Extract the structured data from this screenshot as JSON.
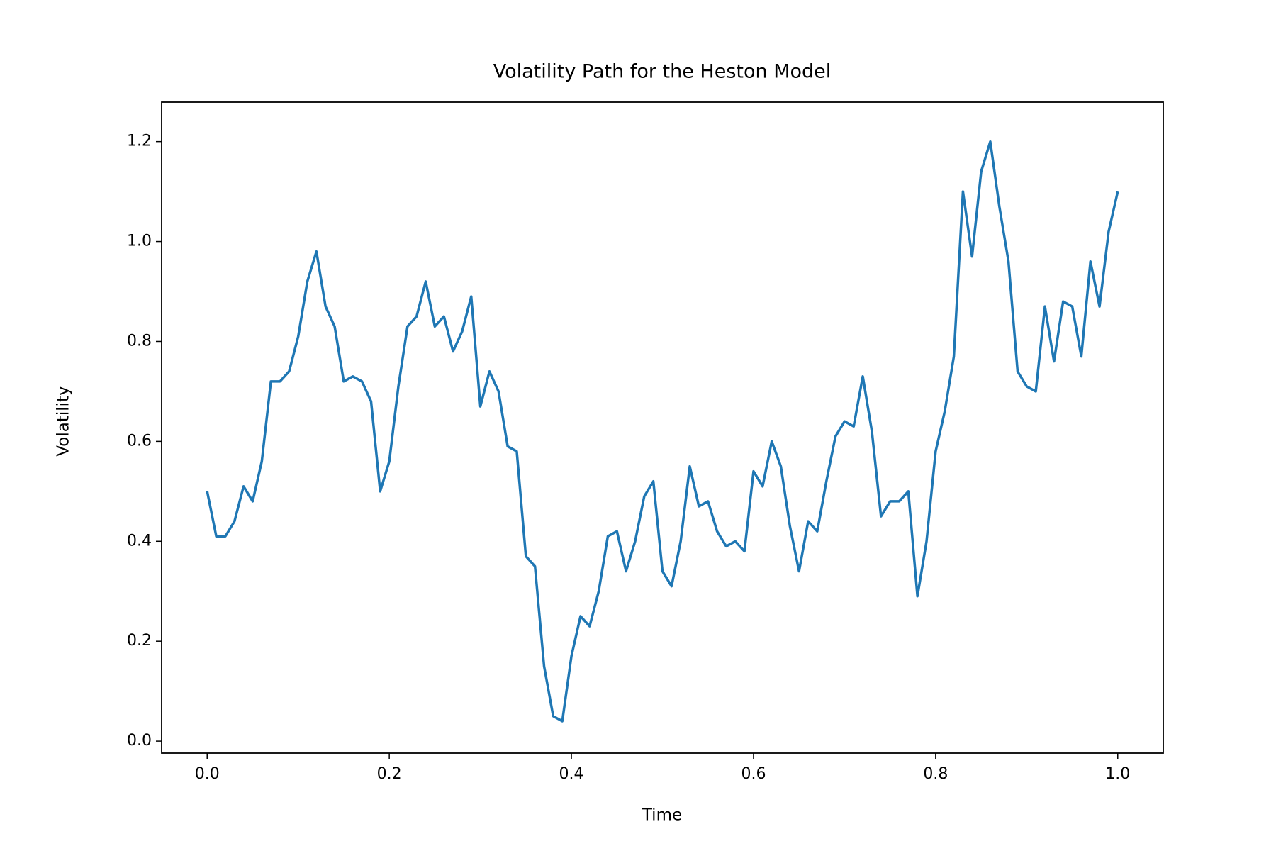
{
  "chart_data": {
    "type": "line",
    "title": "Volatility Path for the Heston Model",
    "x_label": "Time",
    "y_label": "Volatility",
    "x": [
      0,
      0.01,
      0.02,
      0.03,
      0.04,
      0.05,
      0.06,
      0.07,
      0.08,
      0.09,
      0.1,
      0.11,
      0.12,
      0.13,
      0.14,
      0.15,
      0.16,
      0.17,
      0.18,
      0.19,
      0.2,
      0.21,
      0.22,
      0.23,
      0.24,
      0.25,
      0.26,
      0.27,
      0.28,
      0.29,
      0.3,
      0.31,
      0.32,
      0.33,
      0.34,
      0.35,
      0.36,
      0.37,
      0.38,
      0.39,
      0.4,
      0.41,
      0.42,
      0.43,
      0.44,
      0.45,
      0.46,
      0.47,
      0.48,
      0.49,
      0.5,
      0.51,
      0.52,
      0.53,
      0.54,
      0.55,
      0.56,
      0.57,
      0.58,
      0.59,
      0.6,
      0.61,
      0.62,
      0.63,
      0.64,
      0.65,
      0.66,
      0.67,
      0.68,
      0.69,
      0.7,
      0.71,
      0.72,
      0.73,
      0.74,
      0.75,
      0.76,
      0.77,
      0.78,
      0.79,
      0.8,
      0.81,
      0.82,
      0.83,
      0.84,
      0.85,
      0.86,
      0.87,
      0.88,
      0.89,
      0.9,
      0.91,
      0.92,
      0.93,
      0.94,
      0.95,
      0.96,
      0.97,
      0.98,
      0.99,
      1
    ],
    "series": [
      {
        "name": "Volatility",
        "color": "#1f77b4",
        "values": [
          0.5,
          0.41,
          0.41,
          0.44,
          0.51,
          0.48,
          0.56,
          0.72,
          0.72,
          0.74,
          0.81,
          0.92,
          0.98,
          0.87,
          0.83,
          0.72,
          0.73,
          0.72,
          0.68,
          0.5,
          0.56,
          0.71,
          0.83,
          0.85,
          0.92,
          0.83,
          0.85,
          0.78,
          0.82,
          0.89,
          0.67,
          0.74,
          0.7,
          0.59,
          0.58,
          0.37,
          0.35,
          0.15,
          0.05,
          0.04,
          0.17,
          0.25,
          0.23,
          0.3,
          0.41,
          0.42,
          0.34,
          0.4,
          0.49,
          0.52,
          0.34,
          0.31,
          0.4,
          0.55,
          0.47,
          0.48,
          0.42,
          0.39,
          0.4,
          0.38,
          0.54,
          0.51,
          0.6,
          0.55,
          0.43,
          0.34,
          0.44,
          0.42,
          0.52,
          0.61,
          0.64,
          0.63,
          0.73,
          0.62,
          0.45,
          0.48,
          0.48,
          0.5,
          0.29,
          0.4,
          0.58,
          0.66,
          0.77,
          1.1,
          0.97,
          1.14,
          1.2,
          1.07,
          0.96,
          0.74,
          0.71,
          0.7,
          0.87,
          0.76,
          0.88,
          0.87,
          0.77,
          0.96,
          0.87,
          1.02,
          1.1
        ]
      }
    ],
    "xlim": [
      -0.05,
      1.05
    ],
    "xticks": [
      {
        "value": 0,
        "label": "0.0"
      },
      0.2,
      0.4,
      0.6,
      0.8,
      {
        "value": 1,
        "label": "1.0"
      }
    ],
    "ylim": [
      -0.024,
      1.279
    ],
    "yticks": [
      {
        "value": 0,
        "label": "0.0"
      },
      0.2,
      0.4,
      0.6,
      0.8,
      {
        "value": 1,
        "label": "1.0"
      },
      1.2
    ],
    "grid": false
  }
}
